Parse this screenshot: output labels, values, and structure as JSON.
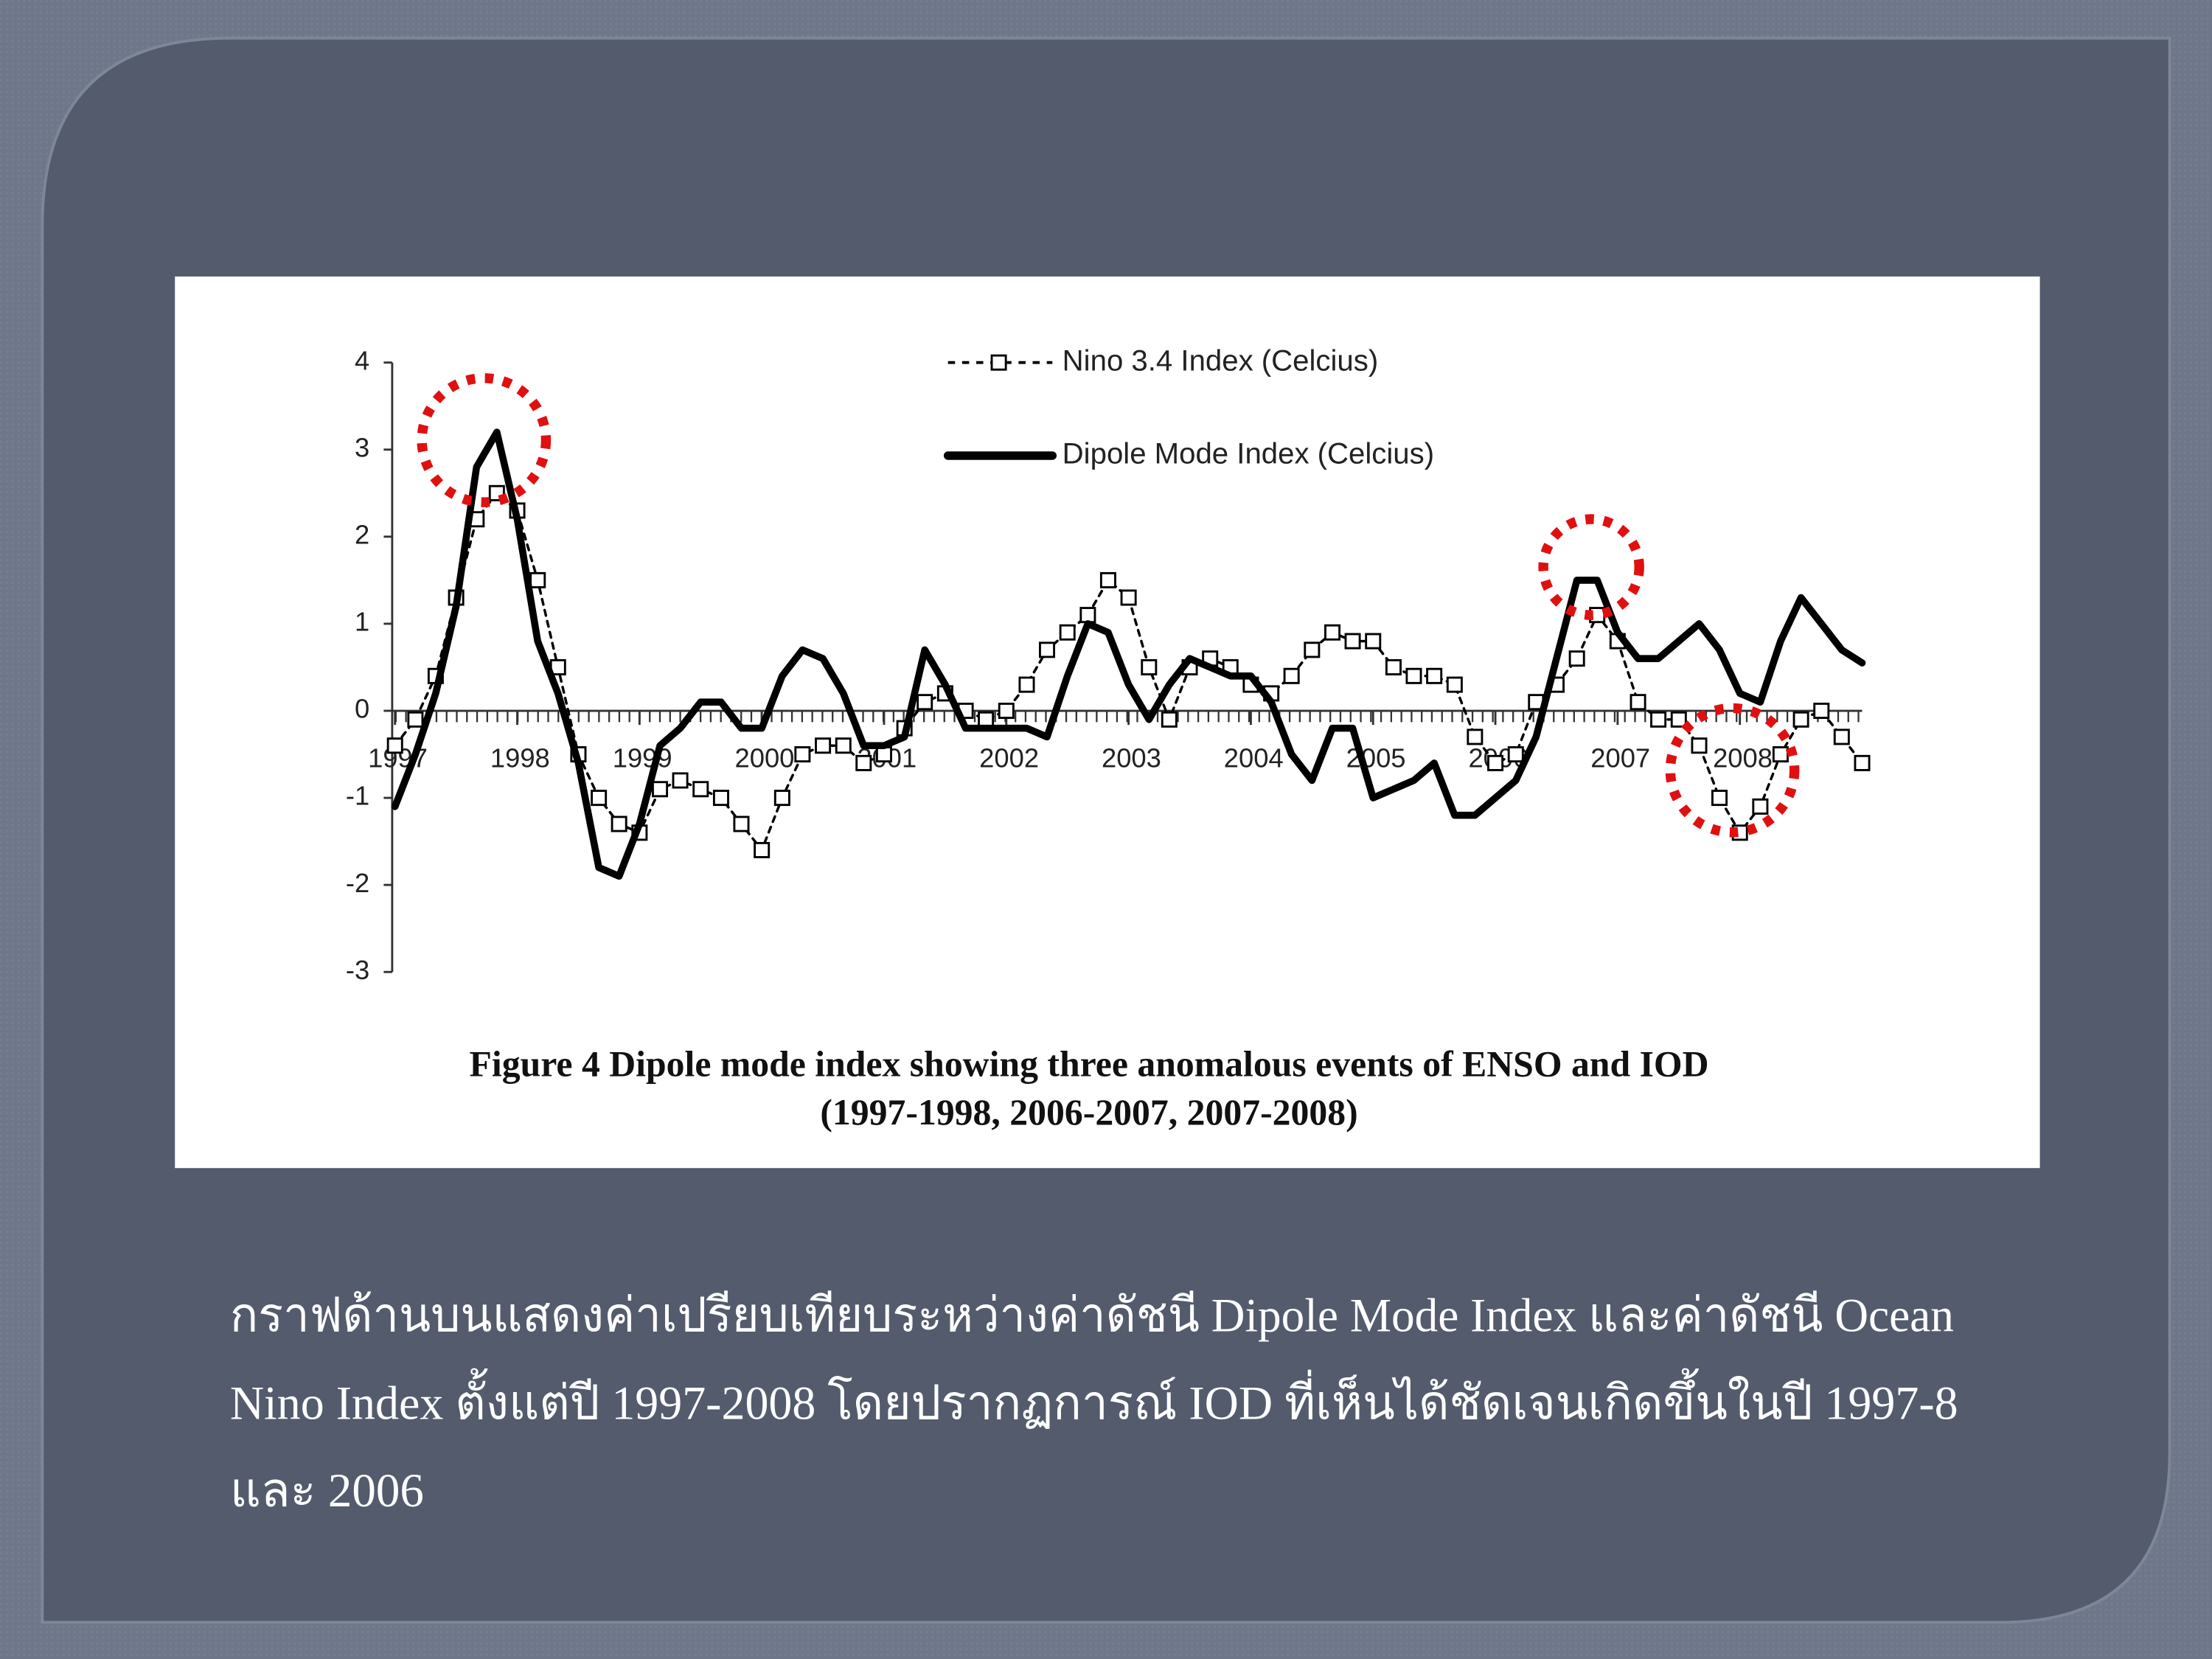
{
  "chart_data": {
    "type": "line",
    "x": [
      1997,
      1997.167,
      1997.333,
      1997.5,
      1997.667,
      1997.833,
      1998,
      1998.167,
      1998.333,
      1998.5,
      1998.667,
      1998.833,
      1999,
      1999.167,
      1999.333,
      1999.5,
      1999.667,
      1999.833,
      2000,
      2000.167,
      2000.333,
      2000.5,
      2000.667,
      2000.833,
      2001,
      2001.167,
      2001.333,
      2001.5,
      2001.667,
      2001.833,
      2002,
      2002.167,
      2002.333,
      2002.5,
      2002.667,
      2002.833,
      2003,
      2003.167,
      2003.333,
      2003.5,
      2003.667,
      2003.833,
      2004,
      2004.167,
      2004.333,
      2004.5,
      2004.667,
      2004.833,
      2005,
      2005.167,
      2005.333,
      2005.5,
      2005.667,
      2005.833,
      2006,
      2006.167,
      2006.333,
      2006.5,
      2006.667,
      2006.833,
      2007,
      2007.167,
      2007.333,
      2007.5,
      2007.667,
      2007.833,
      2008,
      2008.167,
      2008.333,
      2008.5,
      2008.667,
      2008.833,
      2009
    ],
    "series": [
      {
        "name": "Nino 3.4 Index (Celcius)",
        "color": "#000000",
        "dashed": true,
        "marker": "square",
        "values": [
          -0.4,
          -0.1,
          0.4,
          1.3,
          2.2,
          2.5,
          2.3,
          1.5,
          0.5,
          -0.5,
          -1.0,
          -1.3,
          -1.4,
          -0.9,
          -0.8,
          -0.9,
          -1.0,
          -1.3,
          -1.6,
          -1.0,
          -0.5,
          -0.4,
          -0.4,
          -0.6,
          -0.5,
          -0.2,
          0.1,
          0.2,
          0.0,
          -0.1,
          0.0,
          0.3,
          0.7,
          0.9,
          1.1,
          1.5,
          1.3,
          0.5,
          -0.1,
          0.5,
          0.6,
          0.5,
          0.3,
          0.2,
          0.4,
          0.7,
          0.9,
          0.8,
          0.8,
          0.5,
          0.4,
          0.4,
          0.3,
          -0.3,
          -0.6,
          -0.5,
          0.1,
          0.3,
          0.6,
          1.1,
          0.8,
          0.1,
          -0.1,
          -0.1,
          -0.4,
          -1.0,
          -1.4,
          -1.1,
          -0.5,
          -0.1,
          0.0,
          -0.3,
          -0.6
        ]
      },
      {
        "name": "Dipole Mode Index (Celcius)",
        "color": "#000000",
        "dashed": false,
        "marker": "none",
        "values": [
          -1.1,
          -0.5,
          0.2,
          1.2,
          2.8,
          3.2,
          2.2,
          0.8,
          0.2,
          -0.6,
          -1.8,
          -1.9,
          -1.3,
          -0.4,
          -0.2,
          0.1,
          0.1,
          -0.2,
          -0.2,
          0.4,
          0.7,
          0.6,
          0.2,
          -0.4,
          -0.4,
          -0.3,
          0.7,
          0.3,
          -0.2,
          -0.2,
          -0.2,
          -0.2,
          -0.3,
          0.4,
          1.0,
          0.9,
          0.3,
          -0.1,
          0.3,
          0.6,
          0.5,
          0.4,
          0.4,
          0.1,
          -0.5,
          -0.8,
          -0.2,
          -0.2,
          -1.0,
          -0.9,
          -0.8,
          -0.6,
          -1.2,
          -1.2,
          -1.0,
          -0.8,
          -0.3,
          0.6,
          1.5,
          1.5,
          0.9,
          0.6,
          0.6,
          0.8,
          1.0,
          0.7,
          0.2,
          0.1,
          0.8,
          1.3,
          1.0,
          0.7,
          0.55
        ]
      }
    ],
    "xlim": [
      1997,
      2009
    ],
    "xticks": [
      1997,
      1998,
      1999,
      2000,
      2001,
      2002,
      2003,
      2004,
      2005,
      2006,
      2007,
      2008
    ],
    "ylim": [
      -3,
      4
    ],
    "yticks": [
      -3,
      -2,
      -1,
      0,
      1,
      2,
      3,
      4
    ],
    "grid": false,
    "legend": "top",
    "figure_caption": [
      "Figure 4 Dipole mode index showing three anomalous events of ENSO and IOD",
      "(1997-1998, 2006-2007, 2007-2008)"
    ]
  },
  "body_text": [
    "กราฟด้านบนแสดงค่าเปรียบเทียบระหว่างค่าดัชนี Dipole Mode Index และค่าดัชนี Ocean",
    "Nino Index ตั้งแต่ปี 1997-2008 โดยปรากฏการณ์ IOD ที่เห็นได้ชัดเจนเกิดขึ้นในปี 1997-8",
    "และ 2006"
  ]
}
